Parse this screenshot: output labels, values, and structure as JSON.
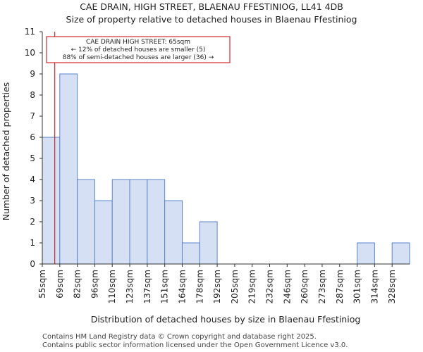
{
  "chart_data": {
    "type": "bar",
    "title": "CAE DRAIN, HIGH STREET, BLAENAU FFESTINIOG, LL41 4DB",
    "subtitle": "Size of property relative to detached houses in Blaenau Ffestiniog",
    "xlabel": "Distribution of detached houses by size in Blaenau Ffestiniog",
    "ylabel": "Number of detached properties",
    "categories": [
      "55sqm",
      "69sqm",
      "82sqm",
      "96sqm",
      "110sqm",
      "123sqm",
      "137sqm",
      "151sqm",
      "164sqm",
      "178sqm",
      "192sqm",
      "205sqm",
      "219sqm",
      "232sqm",
      "246sqm",
      "260sqm",
      "273sqm",
      "287sqm",
      "301sqm",
      "314sqm",
      "328sqm"
    ],
    "values": [
      6,
      9,
      4,
      3,
      4,
      4,
      4,
      3,
      1,
      2,
      0,
      0,
      0,
      0,
      0,
      0,
      0,
      0,
      1,
      0,
      1
    ],
    "ylim": [
      0,
      11
    ],
    "yticks": [
      0,
      1,
      2,
      3,
      4,
      5,
      6,
      7,
      8,
      9,
      10,
      11
    ],
    "bar_fill": "#d6e0f5",
    "bar_stroke": "#5b84c8",
    "marker": {
      "value_sqm": 65,
      "color": "#cc0000",
      "annotation": [
        "CAE DRAIN HIGH STREET: 65sqm",
        "← 12% of detached houses are smaller (5)",
        "88% of semi-detached houses are larger (36) →"
      ]
    }
  },
  "footer": {
    "line1": "Contains HM Land Registry data © Crown copyright and database right 2025.",
    "line2": "Contains public sector information licensed under the Open Government Licence v3.0."
  }
}
